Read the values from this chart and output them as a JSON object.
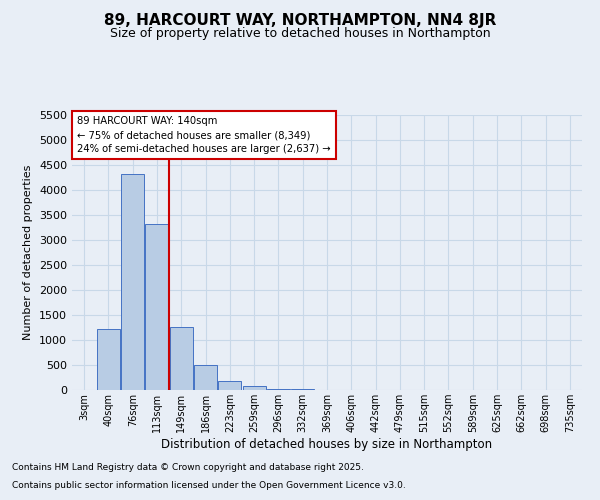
{
  "title": "89, HARCOURT WAY, NORTHAMPTON, NN4 8JR",
  "subtitle": "Size of property relative to detached houses in Northampton",
  "xlabel": "Distribution of detached houses by size in Northampton",
  "ylabel": "Number of detached properties",
  "categories": [
    "3sqm",
    "40sqm",
    "76sqm",
    "113sqm",
    "149sqm",
    "186sqm",
    "223sqm",
    "259sqm",
    "296sqm",
    "332sqm",
    "369sqm",
    "406sqm",
    "442sqm",
    "479sqm",
    "515sqm",
    "552sqm",
    "589sqm",
    "625sqm",
    "662sqm",
    "698sqm",
    "735sqm"
  ],
  "bar_values": [
    0,
    1230,
    4330,
    3320,
    1260,
    500,
    190,
    80,
    30,
    20,
    0,
    0,
    0,
    0,
    0,
    0,
    0,
    0,
    0,
    0,
    0
  ],
  "bar_color": "#b8cce4",
  "bar_edge_color": "#4472c4",
  "grid_color": "#c8d8e8",
  "background_color": "#e8eef6",
  "vline_x_index": 3.5,
  "vline_color": "#cc0000",
  "annotation_title": "89 HARCOURT WAY: 140sqm",
  "annotation_line1": "← 75% of detached houses are smaller (8,349)",
  "annotation_line2": "24% of semi-detached houses are larger (2,637) →",
  "annotation_box_color": "#ffffff",
  "annotation_border_color": "#cc0000",
  "ylim": [
    0,
    5500
  ],
  "yticks": [
    0,
    500,
    1000,
    1500,
    2000,
    2500,
    3000,
    3500,
    4000,
    4500,
    5000,
    5500
  ],
  "footnote1": "Contains HM Land Registry data © Crown copyright and database right 2025.",
  "footnote2": "Contains public sector information licensed under the Open Government Licence v3.0.",
  "figsize": [
    6.0,
    5.0
  ],
  "dpi": 100
}
